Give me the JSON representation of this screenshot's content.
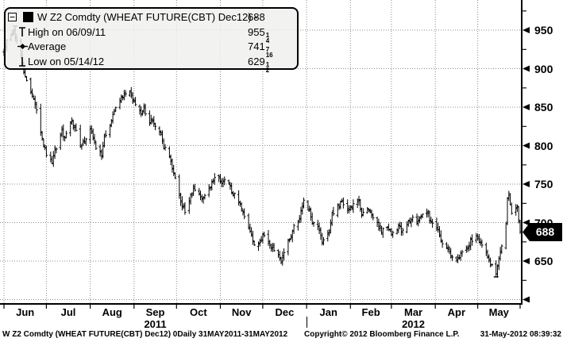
{
  "colors": {
    "background": "#ffffff",
    "ink": "#000000",
    "grid": "#8c8c8c",
    "legend_bg": "#f0f0ed",
    "tag_bg": "#000000",
    "tag_fg": "#ffffff"
  },
  "legend": {
    "rows": [
      {
        "id": "series",
        "icon": "series-swatch",
        "label": "W Z2 Comdty (WHEAT FUTURE(CBT) Dec12) -",
        "value_whole": "688",
        "value_num": "",
        "value_den": ""
      },
      {
        "id": "high",
        "icon": "high-marker",
        "label": "High on 06/09/11",
        "value_whole": "955",
        "value_num": "1",
        "value_den": "4"
      },
      {
        "id": "average",
        "icon": "average-marker",
        "label": "Average",
        "value_whole": "741",
        "value_num": "7",
        "value_den": "16"
      },
      {
        "id": "low",
        "icon": "low-marker",
        "label": "Low on 05/14/12",
        "value_whole": "629",
        "value_num": "1",
        "value_den": "2"
      }
    ]
  },
  "footer": {
    "left": "W Z2 Comdty (WHEAT FUTURE(CBT) Dec12) 0Daily 31MAY2011-31MAY2012",
    "copyright": "Copyright© 2012 Bloomberg Finance L.P.",
    "timestamp": "31-May-2012 08:39:32"
  },
  "chart_data": {
    "type": "ohlc_bar",
    "title": "W Z2 Comdty (WHEAT FUTURE(CBT) Dec12)",
    "x_range": [
      "2011-06-01",
      "2012-05-31"
    ],
    "ylim": [
      600,
      975
    ],
    "grid": true,
    "y_gridlines": [
      600,
      650,
      700,
      750,
      800,
      850,
      900,
      950
    ],
    "y_tick_labels": [
      950,
      900,
      850,
      800,
      750,
      700,
      650
    ],
    "last": 688,
    "last_label": "688",
    "high_point": {
      "date": "2011-06-09",
      "value": 955.25,
      "label": "955 1/4"
    },
    "low_point": {
      "date": "2012-05-14",
      "value": 629.5,
      "label": "629 1/2"
    },
    "average": 741.4375,
    "average_label": "741 7/16",
    "keypoints": [
      [
        "2011-06-01",
        922
      ],
      [
        "2011-06-03",
        935
      ],
      [
        "2011-06-08",
        948
      ],
      [
        "2011-06-09",
        940
      ],
      [
        "2011-06-13",
        915
      ],
      [
        "2011-06-15",
        896
      ],
      [
        "2011-06-17",
        882
      ],
      [
        "2011-06-21",
        868
      ],
      [
        "2011-06-23",
        852
      ],
      [
        "2011-06-27",
        818
      ],
      [
        "2011-06-30",
        795
      ],
      [
        "2011-07-01",
        788
      ],
      [
        "2011-07-05",
        779
      ],
      [
        "2011-07-08",
        798
      ],
      [
        "2011-07-12",
        818
      ],
      [
        "2011-07-14",
        810
      ],
      [
        "2011-07-19",
        833
      ],
      [
        "2011-07-21",
        824
      ],
      [
        "2011-07-25",
        798
      ],
      [
        "2011-07-28",
        806
      ],
      [
        "2011-08-01",
        824
      ],
      [
        "2011-08-03",
        812
      ],
      [
        "2011-08-05",
        798
      ],
      [
        "2011-08-09",
        786
      ],
      [
        "2011-08-11",
        810
      ],
      [
        "2011-08-15",
        826
      ],
      [
        "2011-08-17",
        840
      ],
      [
        "2011-08-19",
        848
      ],
      [
        "2011-08-23",
        860
      ],
      [
        "2011-08-25",
        868
      ],
      [
        "2011-08-29",
        871
      ],
      [
        "2011-08-31",
        862
      ],
      [
        "2011-09-02",
        852
      ],
      [
        "2011-09-06",
        843
      ],
      [
        "2011-09-08",
        848
      ],
      [
        "2011-09-12",
        830
      ],
      [
        "2011-09-14",
        835
      ],
      [
        "2011-09-16",
        822
      ],
      [
        "2011-09-20",
        812
      ],
      [
        "2011-09-22",
        798
      ],
      [
        "2011-09-26",
        786
      ],
      [
        "2011-09-28",
        772
      ],
      [
        "2011-09-30",
        758
      ],
      [
        "2011-10-03",
        735
      ],
      [
        "2011-10-05",
        722
      ],
      [
        "2011-10-07",
        716
      ],
      [
        "2011-10-11",
        736
      ],
      [
        "2011-10-13",
        746
      ],
      [
        "2011-10-17",
        738
      ],
      [
        "2011-10-19",
        730
      ],
      [
        "2011-10-21",
        737
      ],
      [
        "2011-10-25",
        748
      ],
      [
        "2011-10-27",
        755
      ],
      [
        "2011-10-31",
        760
      ],
      [
        "2011-11-02",
        752
      ],
      [
        "2011-11-04",
        756
      ],
      [
        "2011-11-08",
        746
      ],
      [
        "2011-11-10",
        738
      ],
      [
        "2011-11-14",
        728
      ],
      [
        "2011-11-16",
        718
      ],
      [
        "2011-11-18",
        708
      ],
      [
        "2011-11-22",
        690
      ],
      [
        "2011-11-25",
        668
      ],
      [
        "2011-11-29",
        674
      ],
      [
        "2011-12-01",
        686
      ],
      [
        "2011-12-05",
        676
      ],
      [
        "2011-12-08",
        666
      ],
      [
        "2011-12-12",
        658
      ],
      [
        "2011-12-14",
        652
      ],
      [
        "2011-12-16",
        662
      ],
      [
        "2011-12-20",
        678
      ],
      [
        "2011-12-22",
        692
      ],
      [
        "2011-12-27",
        706
      ],
      [
        "2011-12-29",
        722
      ],
      [
        "2011-12-30",
        730
      ],
      [
        "2012-01-03",
        716
      ],
      [
        "2012-01-05",
        702
      ],
      [
        "2012-01-09",
        694
      ],
      [
        "2012-01-12",
        676
      ],
      [
        "2012-01-17",
        690
      ],
      [
        "2012-01-19",
        712
      ],
      [
        "2012-01-24",
        722
      ],
      [
        "2012-01-26",
        728
      ],
      [
        "2012-01-31",
        716
      ],
      [
        "2012-02-02",
        722
      ],
      [
        "2012-02-07",
        728
      ],
      [
        "2012-02-09",
        712
      ],
      [
        "2012-02-14",
        718
      ],
      [
        "2012-02-16",
        708
      ],
      [
        "2012-02-21",
        698
      ],
      [
        "2012-02-23",
        690
      ],
      [
        "2012-02-28",
        692
      ],
      [
        "2012-03-01",
        686
      ],
      [
        "2012-03-06",
        694
      ],
      [
        "2012-03-08",
        690
      ],
      [
        "2012-03-13",
        700
      ],
      [
        "2012-03-15",
        706
      ],
      [
        "2012-03-20",
        702
      ],
      [
        "2012-03-22",
        708
      ],
      [
        "2012-03-27",
        712
      ],
      [
        "2012-03-29",
        700
      ],
      [
        "2012-04-03",
        690
      ],
      [
        "2012-04-05",
        676
      ],
      [
        "2012-04-10",
        664
      ],
      [
        "2012-04-12",
        658
      ],
      [
        "2012-04-17",
        652
      ],
      [
        "2012-04-19",
        660
      ],
      [
        "2012-04-24",
        668
      ],
      [
        "2012-04-26",
        676
      ],
      [
        "2012-04-30",
        680
      ],
      [
        "2012-05-02",
        676
      ],
      [
        "2012-05-04",
        668
      ],
      [
        "2012-05-08",
        656
      ],
      [
        "2012-05-10",
        646
      ],
      [
        "2012-05-14",
        632
      ],
      [
        "2012-05-16",
        656
      ],
      [
        "2012-05-18",
        670
      ],
      [
        "2012-05-21",
        700
      ],
      [
        "2012-05-22",
        730
      ],
      [
        "2012-05-23",
        740
      ],
      [
        "2012-05-24",
        722
      ],
      [
        "2012-05-25",
        712
      ],
      [
        "2012-05-29",
        720
      ],
      [
        "2012-05-30",
        702
      ],
      [
        "2012-05-31",
        688
      ]
    ],
    "x_axis": {
      "months": [
        {
          "label": "Jun",
          "start": "2011-06-01"
        },
        {
          "label": "Jul",
          "start": "2011-07-01"
        },
        {
          "label": "Aug",
          "start": "2011-08-01"
        },
        {
          "label": "Sep",
          "start": "2011-09-01"
        },
        {
          "label": "Oct",
          "start": "2011-10-01"
        },
        {
          "label": "Nov",
          "start": "2011-11-01"
        },
        {
          "label": "Dec",
          "start": "2011-12-01"
        },
        {
          "label": "Jan",
          "start": "2012-01-01"
        },
        {
          "label": "Feb",
          "start": "2012-02-01"
        },
        {
          "label": "Mar",
          "start": "2012-03-01"
        },
        {
          "label": "Apr",
          "start": "2012-04-01"
        },
        {
          "label": "May",
          "start": "2012-05-01"
        }
      ],
      "years": [
        {
          "label": "2011",
          "from": "2011-06-01",
          "to": "2012-01-01"
        },
        {
          "label": "2012",
          "from": "2012-01-01",
          "to": "2012-05-31"
        }
      ]
    }
  }
}
